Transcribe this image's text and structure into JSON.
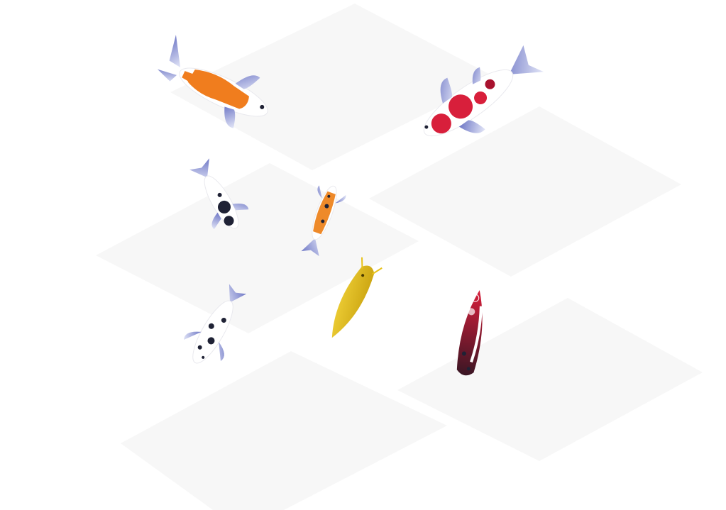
{
  "scene": {
    "background_color": "#ffffff",
    "tile_color": "#f7f7f7",
    "fin_color": "#8a93d1",
    "koi": [
      {
        "name": "kohaku-orange",
        "pattern": "orange-white",
        "colors": [
          "#f07d1e",
          "#ffffff"
        ]
      },
      {
        "name": "kohaku-red",
        "pattern": "red-spots",
        "colors": [
          "#d81f3b",
          "#ffffff"
        ]
      },
      {
        "name": "black-spotted-small",
        "pattern": "black-spots",
        "colors": [
          "#1f2235",
          "#ffffff"
        ]
      },
      {
        "name": "orange-spotted-small",
        "pattern": "orange-black",
        "colors": [
          "#ee8a2a",
          "#ffffff",
          "#1f2235"
        ]
      },
      {
        "name": "yellow-ogon",
        "pattern": "solid-yellow",
        "colors": [
          "#e8c21a"
        ]
      },
      {
        "name": "white-black-spotted",
        "pattern": "black-spots",
        "colors": [
          "#1f2235",
          "#ffffff"
        ]
      },
      {
        "name": "red-black-koi",
        "pattern": "red-black",
        "colors": [
          "#d81f3b",
          "#4a1c2a",
          "#ffffff"
        ]
      }
    ]
  }
}
